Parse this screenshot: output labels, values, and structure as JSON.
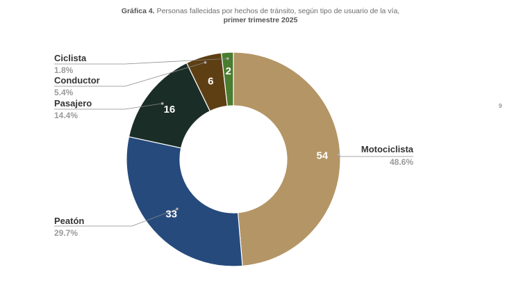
{
  "title": {
    "prefix": "Gráfica 4.",
    "text": "Personas fallecidas por hechos de tránsito, según tipo de usuario de la vía,",
    "line2": "primer trimestre 2025"
  },
  "page_number": "9",
  "colors": {
    "motociclista": "#b49565",
    "peaton": "#264a7c",
    "pasajero": "#1b2d27",
    "conductor": "#5e3f14",
    "ciclista": "#4a7d2f"
  },
  "chart_data": {
    "type": "pie",
    "donut": true,
    "title": "Gráfica 4. Personas fallecidas por hechos de tránsito, según tipo de usuario de la vía, primer trimestre 2025",
    "slices": [
      {
        "label": "Motociclista",
        "value": 54,
        "percent": "48.6%",
        "color": "#b49565"
      },
      {
        "label": "Peatón",
        "value": 33,
        "percent": "29.7%",
        "color": "#264a7c"
      },
      {
        "label": "Pasajero",
        "value": 16,
        "percent": "14.4%",
        "color": "#1b2d27"
      },
      {
        "label": "Conductor",
        "value": 6,
        "percent": "5.4%",
        "color": "#5e3f14"
      },
      {
        "label": "Ciclista",
        "value": 2,
        "percent": "1.8%",
        "color": "#4a7d2f"
      }
    ],
    "legend": "callouts"
  }
}
